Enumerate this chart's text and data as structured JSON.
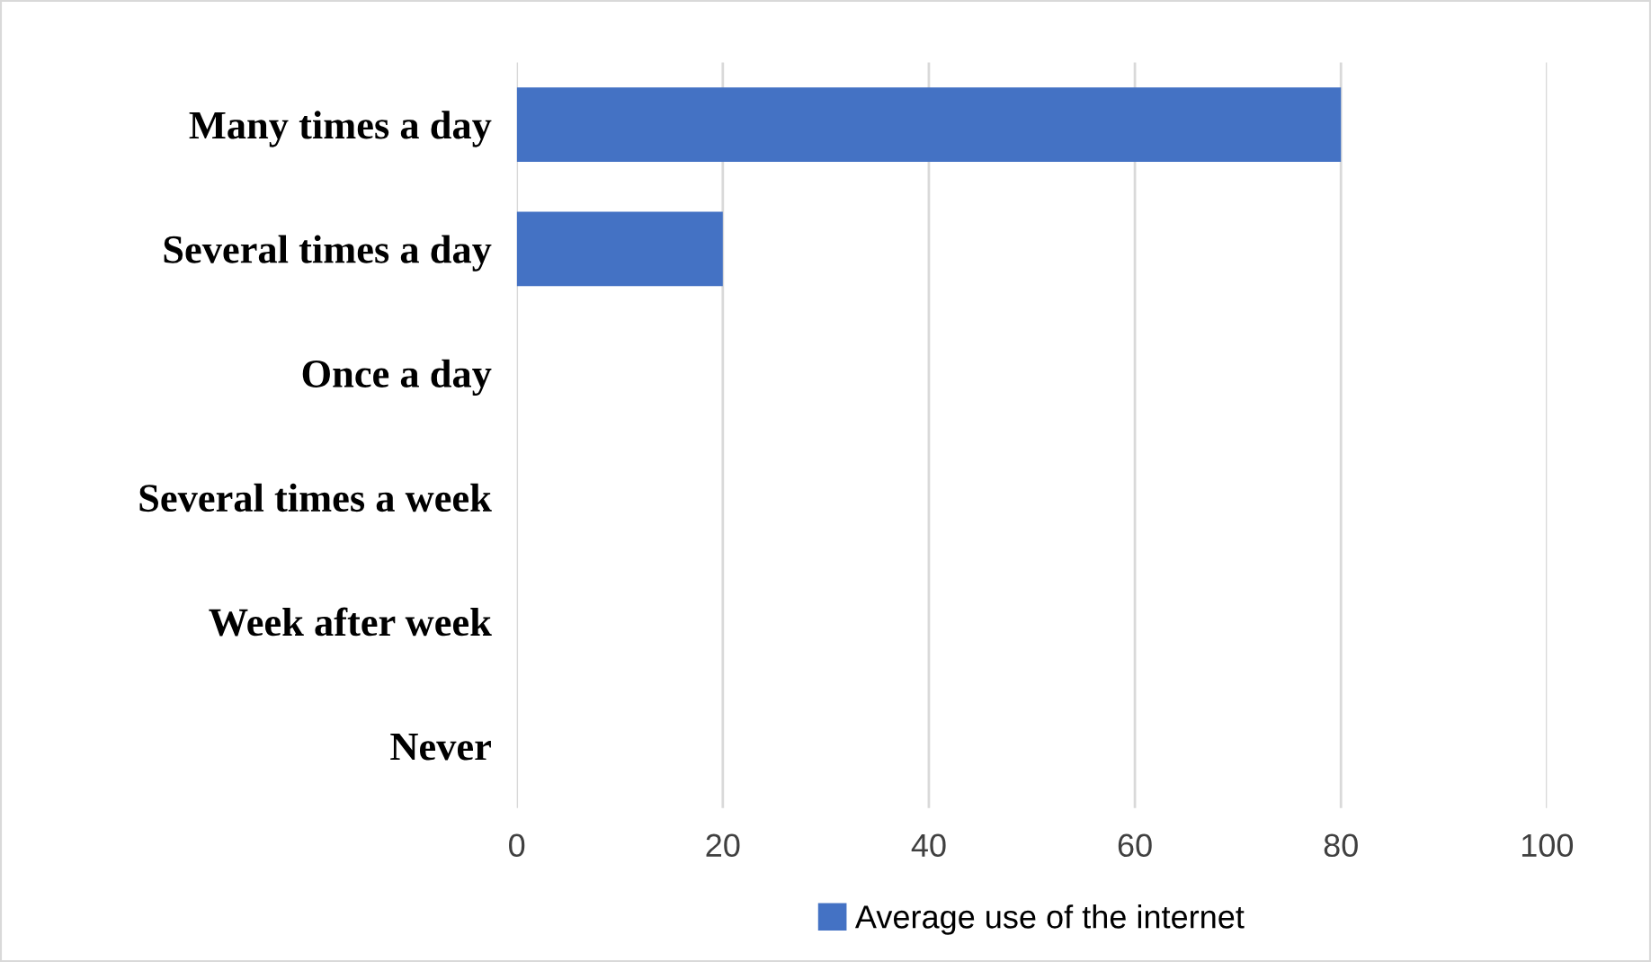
{
  "chart_data": {
    "type": "bar",
    "orientation": "horizontal",
    "categories": [
      "Many times a day",
      "Several times a day",
      "Once a day",
      "Several times a week",
      "Week after week",
      "Never"
    ],
    "series": [
      {
        "name": "Average use of the internet",
        "color": "#4472c4",
        "values": [
          80,
          20,
          0,
          0,
          0,
          0
        ]
      }
    ],
    "xlim": [
      0,
      100
    ],
    "xticks": [
      0,
      20,
      40,
      60,
      80,
      100
    ],
    "grid": "x",
    "legend": "bottom"
  }
}
